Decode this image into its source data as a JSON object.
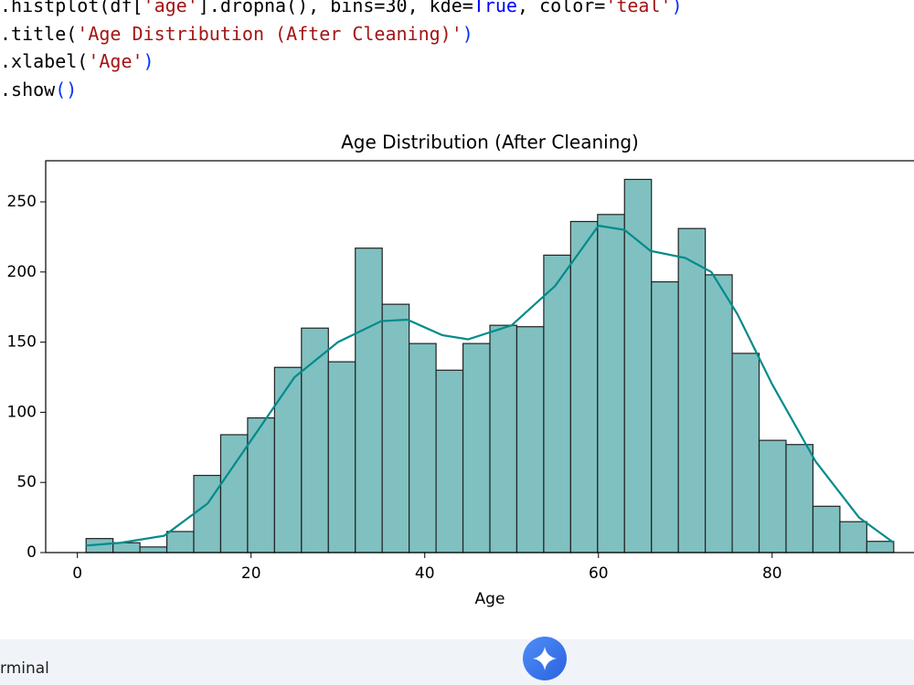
{
  "code": {
    "lines": [
      [
        {
          "text": ".histplot(df[",
          "color": "#000000"
        },
        {
          "text": "'age'",
          "color": "#a31515"
        },
        {
          "text": "].dropna(), bins=",
          "color": "#000000"
        },
        {
          "text": "30",
          "color": "#000000"
        },
        {
          "text": ", kde=",
          "color": "#000000"
        },
        {
          "text": "True",
          "color": "#0000ff"
        },
        {
          "text": ", color=",
          "color": "#000000"
        },
        {
          "text": "'teal'",
          "color": "#a31515"
        },
        {
          "text": ")",
          "color": "#0431fa"
        }
      ],
      [
        {
          "text": ".title(",
          "color": "#000000"
        },
        {
          "text": "'Age Distribution (After Cleaning)'",
          "color": "#a31515"
        },
        {
          "text": ")",
          "color": "#0431fa"
        }
      ],
      [
        {
          "text": ".xlabel(",
          "color": "#000000"
        },
        {
          "text": "'Age'",
          "color": "#a31515"
        },
        {
          "text": ")",
          "color": "#0431fa"
        }
      ],
      [
        {
          "text": ".show",
          "color": "#000000"
        },
        {
          "text": "()",
          "color": "#0431fa"
        }
      ]
    ]
  },
  "chart_data": {
    "type": "histogram",
    "title": "Age Distribution (After Cleaning)",
    "x_label": "Age",
    "bins": [
      1,
      4.1,
      7.2,
      10.3,
      13.4,
      16.5,
      19.6,
      22.7,
      25.8,
      28.9,
      32,
      35.1,
      38.2,
      41.3,
      44.4,
      47.5,
      50.6,
      53.7,
      56.8,
      59.9,
      63,
      66.1,
      69.2,
      72.3,
      75.4,
      78.5,
      81.6,
      84.7,
      87.8,
      90.9,
      94
    ],
    "values": [
      10,
      7,
      4,
      15,
      55,
      84,
      96,
      132,
      160,
      136,
      217,
      177,
      149,
      130,
      149,
      162,
      161,
      212,
      236,
      241,
      266,
      193,
      231,
      198,
      142,
      80,
      77,
      33,
      22,
      8
    ],
    "color": "#80c0c0",
    "edge_color": "#222222",
    "kde": {
      "color": "#008b8b",
      "x": [
        1,
        5,
        10,
        15,
        20,
        25,
        30,
        35,
        38,
        42,
        45,
        50,
        55,
        60,
        63,
        66,
        70,
        73,
        76,
        80,
        85,
        90,
        94
      ],
      "values": [
        5,
        7,
        12,
        35,
        80,
        125,
        150,
        165,
        166,
        155,
        152,
        162,
        190,
        233,
        230,
        215,
        210,
        200,
        170,
        120,
        65,
        25,
        7
      ]
    },
    "xlim": [
      -3.65,
      98.65
    ],
    "xticks": [
      0,
      20,
      40,
      60,
      80
    ],
    "ylim": [
      0,
      279.3
    ],
    "yticks": [
      0,
      50,
      100,
      150,
      200,
      250
    ]
  },
  "footer": {
    "panel_label": "rminal"
  }
}
